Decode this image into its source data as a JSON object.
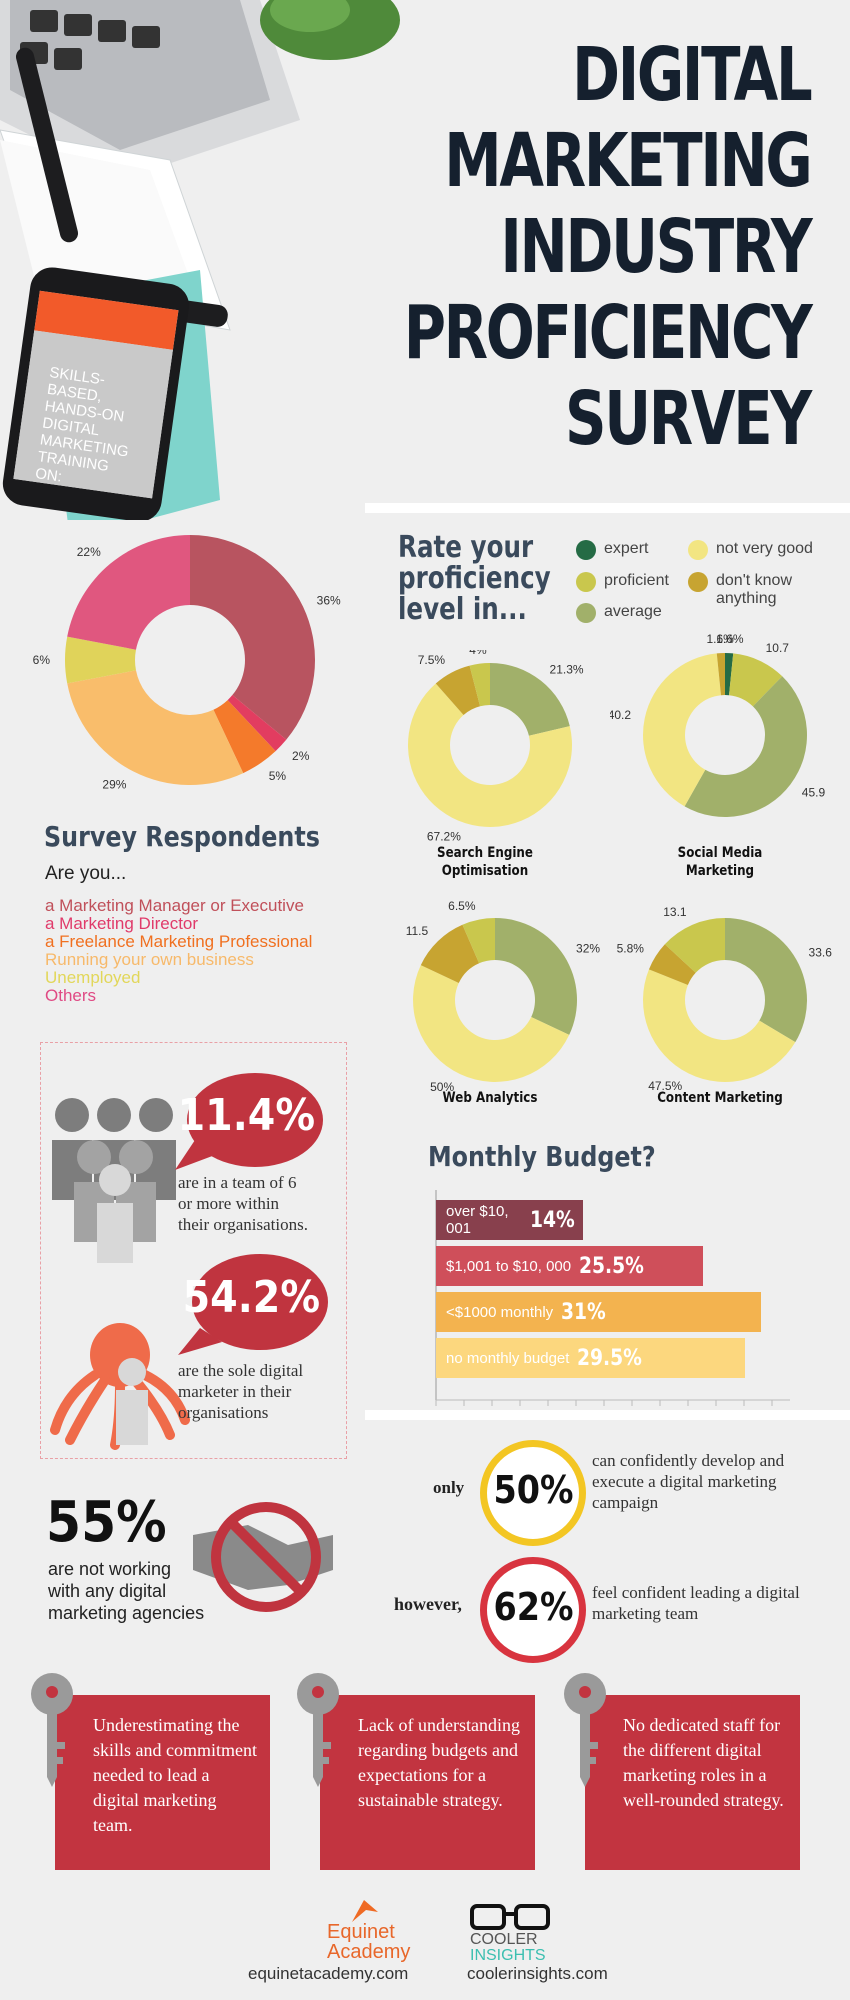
{
  "colors": {
    "expert": "#256b45",
    "proficient": "#c9c74d",
    "average": "#a1b06a",
    "not_very_good": "#f2e582",
    "dont_know": "#c7a431",
    "accent_red": "#c23440",
    "title": "#15202e"
  },
  "title_lines": [
    "DIGITAL",
    "MARKETING",
    "INDUSTRY",
    "PROFICIENCY",
    "SURVEY"
  ],
  "phone_screen_text": "SKILLS-BASED, HANDS-ON DIGITAL MARKETING TRAINING ON:",
  "respondents": {
    "heading": "Survey Respondents",
    "question": "Are you...",
    "items": [
      {
        "label": "a Marketing Manager or Executive",
        "color": "#c0505a"
      },
      {
        "label": "a Marketing Director",
        "color": "#e03a6a"
      },
      {
        "label": "a Freelance Marketing Professional",
        "color": "#f07020"
      },
      {
        "label": "Running your own business",
        "color": "#f7b96a"
      },
      {
        "label": "Unemployed",
        "color": "#e2d75a"
      },
      {
        "label": "Others",
        "color": "#e04a84"
      }
    ]
  },
  "proficiency": {
    "heading_lines": [
      "Rate your",
      "proficiency",
      "level in..."
    ],
    "legend": [
      {
        "key": "expert",
        "label": "expert"
      },
      {
        "key": "proficient",
        "label": "proficient"
      },
      {
        "key": "average",
        "label": "average"
      },
      {
        "key": "not_very_good",
        "label": "not very good"
      },
      {
        "key": "dont_know",
        "label": "don't know anything"
      }
    ]
  },
  "chart_data": [
    {
      "type": "pie",
      "title": "Survey Respondents",
      "categories": [
        "a Marketing Manager or Executive",
        "a Marketing Director",
        "a Freelance Marketing Professional",
        "Running your own business",
        "Unemployed",
        "Others"
      ],
      "values": [
        36,
        2,
        5,
        29,
        6,
        22
      ],
      "value_labels": [
        "36%",
        "2%",
        "5%",
        "29%",
        "6%",
        "22%"
      ],
      "colors": [
        "#b85460",
        "#e23d60",
        "#f47a2b",
        "#f9bd6b",
        "#e0d35a",
        "#e0577f"
      ]
    },
    {
      "type": "pie",
      "title": "Search Engine Optimisation",
      "categories": [
        "expert",
        "average",
        "not very good",
        "don't know anything",
        "proficient"
      ],
      "values": [
        0,
        21.3,
        67.2,
        7.5,
        4
      ],
      "value_labels": [
        "",
        "21.3%",
        "67.2%",
        "7.5%",
        "4%"
      ]
    },
    {
      "type": "pie",
      "title": "Social Media Marketing",
      "categories": [
        "expert",
        "proficient",
        "average",
        "not very good",
        "don't know anything"
      ],
      "values": [
        1.6,
        10.7,
        45.9,
        40.2,
        1.6
      ],
      "value_labels": [
        "1.6%",
        "10.7",
        "45.9",
        "40.2",
        "1.6%"
      ]
    },
    {
      "type": "pie",
      "title": "Web Analytics",
      "categories": [
        "average",
        "not very good",
        "don't know anything",
        "proficient"
      ],
      "values": [
        32,
        50,
        11.5,
        6.5
      ],
      "value_labels": [
        "32%",
        "50%",
        "11.5",
        "6.5%"
      ]
    },
    {
      "type": "pie",
      "title": "Content Marketing",
      "categories": [
        "average",
        "not very good",
        "don't know anything",
        "proficient"
      ],
      "values": [
        33.6,
        47.5,
        5.8,
        13.1
      ],
      "value_labels": [
        "33.6",
        "47.5%",
        "5.8%",
        "13.1"
      ]
    },
    {
      "type": "bar",
      "title": "Monthly Budget?",
      "categories": [
        "over $10, 001",
        "$1,001 to $10, 000",
        "<$1000 monthly",
        "no monthly budget"
      ],
      "values": [
        14,
        25.5,
        31,
        29.5
      ],
      "value_labels": [
        "14%",
        "25.5%",
        "31%",
        "29.5%"
      ],
      "colors": [
        "#88404d",
        "#cf4f5a",
        "#f3b34f",
        "#fcd77e"
      ],
      "orientation": "horizontal"
    }
  ],
  "team_stats": {
    "stat1": {
      "value": "11.4%",
      "text_lines": [
        "are in a team of 6",
        "or more within",
        "their organisations."
      ]
    },
    "stat2": {
      "value": "54.2%",
      "text_lines": [
        "are the sole digital",
        "marketer in their",
        "organisations"
      ]
    }
  },
  "agencies": {
    "value": "55%",
    "text_lines": [
      "are not working",
      "with any digital",
      "marketing agencies"
    ]
  },
  "confidence": {
    "row1": {
      "prefix": "only",
      "value": "50%",
      "text_lines": [
        "can confidently develop and",
        "execute a digital marketing",
        "campaign"
      ]
    },
    "row2": {
      "prefix": "however,",
      "value": "62%",
      "text_lines": [
        "feel confident leading a digital",
        "marketing team"
      ]
    }
  },
  "challenges": [
    {
      "text": "Underestimating the skills and commitment needed to lead a digital marketing team."
    },
    {
      "text": "Lack of understanding regarding budgets and expectations for a sustainable strategy."
    },
    {
      "text": "No dedicated staff for the different digital marketing roles in a well-rounded strategy."
    }
  ],
  "footer": {
    "logo1_line1": "Equinet",
    "logo1_line2": "Academy",
    "url1": "equinetacademy.com",
    "logo2_line1": "COOLER",
    "logo2_line2": "INSIGHTS",
    "url2": "coolerinsights.com"
  }
}
